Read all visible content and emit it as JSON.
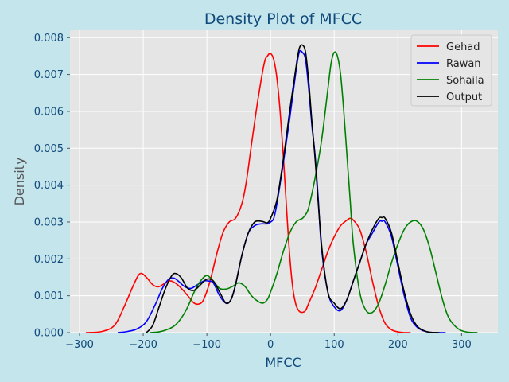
{
  "chart_data": {
    "type": "line",
    "title": "Density Plot of MFCC",
    "xlabel": "MFCC",
    "ylabel": "Density",
    "xlim": [
      -315,
      357
    ],
    "ylim": [
      0,
      0.0082
    ],
    "xticks": [
      -300,
      -200,
      -100,
      0,
      100,
      200,
      300
    ],
    "xtick_labels": [
      "−300",
      "−200",
      "−100",
      "0",
      "100",
      "200",
      "300"
    ],
    "yticks": [
      0,
      0.001,
      0.002,
      0.003,
      0.004,
      0.005,
      0.006,
      0.007,
      0.008
    ],
    "ytick_labels": [
      "0.000",
      "0.001",
      "0.002",
      "0.003",
      "0.004",
      "0.005",
      "0.006",
      "0.007",
      "0.008"
    ],
    "grid": true,
    "legend_position": "top-right",
    "series": [
      {
        "name": "Gehad",
        "color": "#ff0000",
        "x": [
          -290,
          -265,
          -245,
          -230,
          -215,
          -205,
          -195,
          -185,
          -175,
          -160,
          -150,
          -140,
          -130,
          -120,
          -112,
          -105,
          -95,
          -85,
          -75,
          -65,
          -55,
          -45,
          -38,
          -30,
          -20,
          -10,
          -5,
          0,
          5,
          10,
          15,
          20,
          25,
          30,
          35,
          40,
          45,
          50,
          55,
          60,
          70,
          80,
          90,
          100,
          110,
          120,
          125,
          130,
          140,
          150,
          160,
          170,
          180,
          190,
          200,
          210,
          220
        ],
        "y": [
          0,
          3e-05,
          0.0002,
          0.0007,
          0.0013,
          0.0016,
          0.0015,
          0.0013,
          0.00125,
          0.0014,
          0.00135,
          0.0012,
          0.001,
          0.0008,
          0.00078,
          0.0009,
          0.0014,
          0.0021,
          0.0027,
          0.003,
          0.0031,
          0.0035,
          0.0041,
          0.0051,
          0.0063,
          0.0073,
          0.0075,
          0.00757,
          0.0074,
          0.0069,
          0.006,
          0.0048,
          0.0034,
          0.0021,
          0.0012,
          0.00075,
          0.00058,
          0.00055,
          0.0006,
          0.0008,
          0.0012,
          0.0017,
          0.0022,
          0.0026,
          0.0029,
          0.00305,
          0.0031,
          0.00305,
          0.0028,
          0.0022,
          0.0014,
          0.0007,
          0.00025,
          8e-05,
          2e-05,
          0,
          0
        ]
      },
      {
        "name": "Rawan",
        "color": "#0000ff",
        "x": [
          -240,
          -225,
          -210,
          -195,
          -180,
          -170,
          -160,
          -152,
          -145,
          -135,
          -125,
          -115,
          -105,
          -98,
          -90,
          -80,
          -70,
          -62,
          -55,
          -45,
          -35,
          -25,
          -15,
          -5,
          0,
          5,
          10,
          20,
          30,
          40,
          45,
          50,
          55,
          60,
          65,
          70,
          75,
          80,
          90,
          100,
          110,
          120,
          130,
          140,
          150,
          160,
          170,
          175,
          180,
          190,
          200,
          210,
          220,
          230,
          240,
          250,
          260,
          275
        ],
        "y": [
          0,
          3e-05,
          0.0001,
          0.0003,
          0.0008,
          0.0012,
          0.00145,
          0.00148,
          0.0014,
          0.00125,
          0.0012,
          0.0013,
          0.0014,
          0.0014,
          0.00135,
          0.001,
          0.0008,
          0.0009,
          0.0013,
          0.0021,
          0.0027,
          0.0029,
          0.00295,
          0.00295,
          0.003,
          0.0031,
          0.0035,
          0.0046,
          0.0058,
          0.0071,
          0.0076,
          0.0076,
          0.0074,
          0.0066,
          0.0056,
          0.0048,
          0.0036,
          0.0023,
          0.0011,
          0.0007,
          0.0006,
          0.0009,
          0.0014,
          0.0019,
          0.0024,
          0.0027,
          0.003,
          0.00302,
          0.003,
          0.0026,
          0.0018,
          0.001,
          0.0004,
          0.00015,
          5e-05,
          1e-05,
          0,
          0
        ]
      },
      {
        "name": "Sohaila",
        "color": "#008000",
        "x": [
          -190,
          -175,
          -160,
          -150,
          -140,
          -130,
          -120,
          -110,
          -100,
          -90,
          -80,
          -70,
          -60,
          -50,
          -40,
          -30,
          -20,
          -12,
          -5,
          0,
          10,
          20,
          30,
          40,
          50,
          55,
          60,
          70,
          80,
          90,
          95,
          100,
          105,
          110,
          115,
          120,
          125,
          130,
          140,
          150,
          160,
          170,
          180,
          190,
          200,
          210,
          220,
          230,
          240,
          250,
          260,
          270,
          280,
          295,
          310,
          325
        ],
        "y": [
          0,
          2e-05,
          0.0001,
          0.0002,
          0.0004,
          0.0007,
          0.0011,
          0.0014,
          0.00155,
          0.0014,
          0.0012,
          0.00118,
          0.00125,
          0.00135,
          0.00125,
          0.001,
          0.00085,
          0.0008,
          0.0009,
          0.0011,
          0.0016,
          0.0022,
          0.0027,
          0.003,
          0.0031,
          0.0032,
          0.0034,
          0.0042,
          0.0052,
          0.0066,
          0.0073,
          0.0076,
          0.0075,
          0.007,
          0.006,
          0.0048,
          0.0036,
          0.0024,
          0.0011,
          0.0006,
          0.00055,
          0.0008,
          0.0013,
          0.0019,
          0.0024,
          0.0028,
          0.003,
          0.00302,
          0.0028,
          0.0023,
          0.0016,
          0.0009,
          0.0004,
          0.0001,
          1e-05,
          0
        ]
      },
      {
        "name": "Output",
        "color": "#000000",
        "x": [
          -195,
          -185,
          -175,
          -165,
          -155,
          -148,
          -140,
          -130,
          -120,
          -110,
          -100,
          -90,
          -80,
          -70,
          -62,
          -55,
          -45,
          -35,
          -25,
          -15,
          -10,
          -5,
          0,
          10,
          20,
          30,
          40,
          45,
          50,
          55,
          60,
          65,
          70,
          80,
          90,
          100,
          110,
          120,
          130,
          140,
          150,
          160,
          170,
          175,
          180,
          190,
          200,
          210,
          220,
          230,
          240,
          250,
          265
        ],
        "y": [
          0,
          0.0002,
          0.0007,
          0.0012,
          0.00155,
          0.0016,
          0.00148,
          0.0012,
          0.00115,
          0.0013,
          0.00145,
          0.0014,
          0.0011,
          0.0008,
          0.0009,
          0.0013,
          0.0021,
          0.0027,
          0.003,
          0.00302,
          0.003,
          0.00298,
          0.0031,
          0.0036,
          0.0047,
          0.006,
          0.0072,
          0.0077,
          0.0078,
          0.0076,
          0.0068,
          0.0057,
          0.0047,
          0.0024,
          0.0011,
          0.0008,
          0.00065,
          0.0009,
          0.0014,
          0.0019,
          0.0024,
          0.0028,
          0.0031,
          0.00312,
          0.0031,
          0.0027,
          0.0019,
          0.0011,
          0.0005,
          0.00018,
          6e-05,
          1e-05,
          0
        ]
      }
    ]
  }
}
